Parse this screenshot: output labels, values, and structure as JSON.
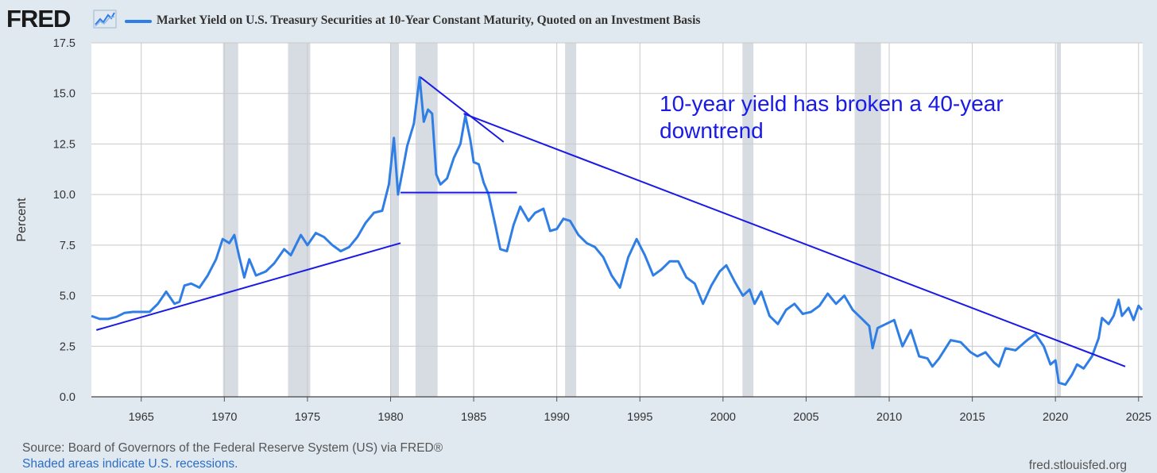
{
  "header": {
    "logo_text": "FRED",
    "logo_icon": "chart-line-icon",
    "series_title": "Market Yield on U.S. Treasury Securities at 10-Year Constant Maturity, Quoted on an Investment Basis"
  },
  "annotation": {
    "text": "10-year yield has broken a 40-year downtrend"
  },
  "footer": {
    "source": "Source: Board of Governors of the Federal Reserve System (US) via FRED®",
    "recession_note": "Shaded areas indicate U.S. recessions.",
    "site": "fred.stlouisfed.org"
  },
  "colors": {
    "series": "#2f7ee6",
    "trendlines": "#1a1ae6",
    "recession_shade": "#d6dce1",
    "background": "#e1e9f0",
    "plot_background": "#ffffff"
  },
  "chart_data": {
    "type": "line",
    "title": "Market Yield on U.S. Treasury Securities at 10-Year Constant Maturity, Quoted on an Investment Basis",
    "ylabel": "Percent",
    "xlabel": "",
    "xlim": [
      1962.0,
      2025.25
    ],
    "ylim": [
      0,
      17.5
    ],
    "x_ticks": [
      "1965",
      "1970",
      "1975",
      "1980",
      "1985",
      "1990",
      "1995",
      "2000",
      "2005",
      "2010",
      "2015",
      "2020",
      "2025"
    ],
    "y_ticks": [
      "0.0",
      "2.5",
      "5.0",
      "7.5",
      "10.0",
      "12.5",
      "15.0",
      "17.5"
    ],
    "grid": true,
    "legend_position": "top-left",
    "recessions": [
      [
        1969.92,
        1970.83
      ],
      [
        1973.83,
        1975.17
      ],
      [
        1980.0,
        1980.5
      ],
      [
        1981.5,
        1982.83
      ],
      [
        1990.5,
        1991.17
      ],
      [
        2001.17,
        2001.83
      ],
      [
        2007.92,
        2009.5
      ],
      [
        2020.08,
        2020.33
      ]
    ],
    "series": [
      {
        "name": "Market Yield on U.S. Treasury Securities at 10-Year Constant Maturity, Quoted on an Investment Basis",
        "points": [
          [
            1962.0,
            4.0
          ],
          [
            1962.5,
            3.85
          ],
          [
            1963.0,
            3.85
          ],
          [
            1963.5,
            3.95
          ],
          [
            1964.0,
            4.15
          ],
          [
            1964.5,
            4.2
          ],
          [
            1965.0,
            4.2
          ],
          [
            1965.5,
            4.2
          ],
          [
            1966.0,
            4.6
          ],
          [
            1966.5,
            5.2
          ],
          [
            1967.0,
            4.6
          ],
          [
            1967.3,
            4.7
          ],
          [
            1967.6,
            5.5
          ],
          [
            1968.0,
            5.6
          ],
          [
            1968.5,
            5.4
          ],
          [
            1969.0,
            6.0
          ],
          [
            1969.5,
            6.8
          ],
          [
            1969.9,
            7.8
          ],
          [
            1970.3,
            7.6
          ],
          [
            1970.6,
            8.0
          ],
          [
            1970.9,
            6.9
          ],
          [
            1971.2,
            5.9
          ],
          [
            1971.5,
            6.8
          ],
          [
            1971.9,
            6.0
          ],
          [
            1972.5,
            6.2
          ],
          [
            1973.0,
            6.6
          ],
          [
            1973.6,
            7.3
          ],
          [
            1974.0,
            7.0
          ],
          [
            1974.6,
            8.0
          ],
          [
            1975.0,
            7.5
          ],
          [
            1975.5,
            8.1
          ],
          [
            1976.0,
            7.9
          ],
          [
            1976.5,
            7.5
          ],
          [
            1977.0,
            7.2
          ],
          [
            1977.5,
            7.4
          ],
          [
            1978.0,
            7.9
          ],
          [
            1978.5,
            8.6
          ],
          [
            1979.0,
            9.1
          ],
          [
            1979.5,
            9.2
          ],
          [
            1979.9,
            10.5
          ],
          [
            1980.2,
            12.8
          ],
          [
            1980.45,
            10.0
          ],
          [
            1980.8,
            11.5
          ],
          [
            1981.0,
            12.4
          ],
          [
            1981.4,
            13.5
          ],
          [
            1981.75,
            15.8
          ],
          [
            1982.0,
            13.6
          ],
          [
            1982.25,
            14.2
          ],
          [
            1982.5,
            14.0
          ],
          [
            1982.75,
            11.0
          ],
          [
            1983.0,
            10.5
          ],
          [
            1983.4,
            10.8
          ],
          [
            1983.8,
            11.8
          ],
          [
            1984.2,
            12.5
          ],
          [
            1984.5,
            13.9
          ],
          [
            1984.8,
            12.7
          ],
          [
            1985.0,
            11.6
          ],
          [
            1985.3,
            11.5
          ],
          [
            1985.6,
            10.6
          ],
          [
            1985.9,
            10.0
          ],
          [
            1986.3,
            8.5
          ],
          [
            1986.6,
            7.3
          ],
          [
            1987.0,
            7.2
          ],
          [
            1987.4,
            8.5
          ],
          [
            1987.8,
            9.4
          ],
          [
            1988.3,
            8.7
          ],
          [
            1988.7,
            9.1
          ],
          [
            1989.2,
            9.3
          ],
          [
            1989.6,
            8.2
          ],
          [
            1990.0,
            8.3
          ],
          [
            1990.4,
            8.8
          ],
          [
            1990.8,
            8.7
          ],
          [
            1991.3,
            8.0
          ],
          [
            1991.8,
            7.6
          ],
          [
            1992.3,
            7.4
          ],
          [
            1992.8,
            6.9
          ],
          [
            1993.3,
            6.0
          ],
          [
            1993.8,
            5.4
          ],
          [
            1994.3,
            6.9
          ],
          [
            1994.8,
            7.8
          ],
          [
            1995.3,
            7.0
          ],
          [
            1995.8,
            6.0
          ],
          [
            1996.3,
            6.3
          ],
          [
            1996.8,
            6.7
          ],
          [
            1997.3,
            6.7
          ],
          [
            1997.8,
            5.9
          ],
          [
            1998.3,
            5.6
          ],
          [
            1998.8,
            4.6
          ],
          [
            1999.3,
            5.5
          ],
          [
            1999.8,
            6.2
          ],
          [
            2000.2,
            6.5
          ],
          [
            2000.7,
            5.7
          ],
          [
            2001.2,
            5.0
          ],
          [
            2001.6,
            5.3
          ],
          [
            2001.9,
            4.6
          ],
          [
            2002.3,
            5.2
          ],
          [
            2002.8,
            4.0
          ],
          [
            2003.3,
            3.6
          ],
          [
            2003.8,
            4.3
          ],
          [
            2004.3,
            4.6
          ],
          [
            2004.8,
            4.1
          ],
          [
            2005.3,
            4.2
          ],
          [
            2005.8,
            4.5
          ],
          [
            2006.3,
            5.1
          ],
          [
            2006.8,
            4.6
          ],
          [
            2007.3,
            5.0
          ],
          [
            2007.8,
            4.3
          ],
          [
            2008.3,
            3.9
          ],
          [
            2008.8,
            3.5
          ],
          [
            2009.0,
            2.4
          ],
          [
            2009.3,
            3.4
          ],
          [
            2009.8,
            3.6
          ],
          [
            2010.3,
            3.8
          ],
          [
            2010.8,
            2.5
          ],
          [
            2011.3,
            3.3
          ],
          [
            2011.8,
            2.0
          ],
          [
            2012.3,
            1.9
          ],
          [
            2012.6,
            1.5
          ],
          [
            2013.0,
            1.9
          ],
          [
            2013.7,
            2.8
          ],
          [
            2014.3,
            2.7
          ],
          [
            2014.9,
            2.2
          ],
          [
            2015.3,
            2.0
          ],
          [
            2015.8,
            2.2
          ],
          [
            2016.3,
            1.7
          ],
          [
            2016.6,
            1.5
          ],
          [
            2017.0,
            2.4
          ],
          [
            2017.6,
            2.3
          ],
          [
            2018.3,
            2.8
          ],
          [
            2018.8,
            3.1
          ],
          [
            2019.3,
            2.5
          ],
          [
            2019.7,
            1.6
          ],
          [
            2020.0,
            1.8
          ],
          [
            2020.2,
            0.7
          ],
          [
            2020.6,
            0.6
          ],
          [
            2021.0,
            1.1
          ],
          [
            2021.3,
            1.6
          ],
          [
            2021.7,
            1.4
          ],
          [
            2022.2,
            2.0
          ],
          [
            2022.6,
            2.9
          ],
          [
            2022.8,
            3.9
          ],
          [
            2023.2,
            3.6
          ],
          [
            2023.5,
            4.0
          ],
          [
            2023.8,
            4.8
          ],
          [
            2024.0,
            4.0
          ],
          [
            2024.4,
            4.4
          ],
          [
            2024.7,
            3.8
          ],
          [
            2025.0,
            4.5
          ],
          [
            2025.2,
            4.3
          ]
        ]
      }
    ],
    "trendlines": [
      [
        [
          1962.3,
          3.3
        ],
        [
          1980.6,
          7.6
        ]
      ],
      [
        [
          1980.6,
          10.1
        ],
        [
          1987.6,
          10.1
        ]
      ],
      [
        [
          1981.8,
          15.8
        ],
        [
          1986.8,
          12.6
        ]
      ],
      [
        [
          1984.4,
          14.0
        ],
        [
          2024.2,
          1.5
        ]
      ]
    ]
  }
}
